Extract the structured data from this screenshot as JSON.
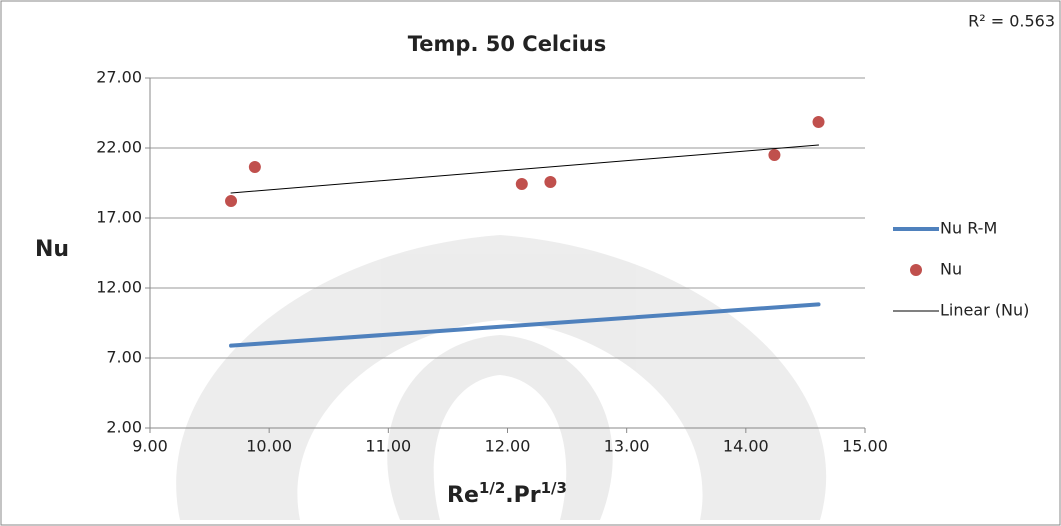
{
  "chart_data": {
    "type": "scatter",
    "title": "Temp. 50 Celcius",
    "annotation": "R² = 0.563",
    "ylabel": "Nu",
    "xlabel": [
      "Re",
      "1/2",
      ".Pr",
      "1/3"
    ],
    "xlim": [
      9,
      15
    ],
    "xticks": [
      {
        "value": 9,
        "label": "9.00"
      },
      {
        "value": 10,
        "label": "10.00"
      },
      {
        "value": 11,
        "label": "11.00"
      },
      {
        "value": 12,
        "label": "12.00"
      },
      {
        "value": 13,
        "label": "13.00"
      },
      {
        "value": 14,
        "label": "14.00"
      },
      {
        "value": 15,
        "label": "15.00"
      }
    ],
    "ylim": [
      2,
      27
    ],
    "yticks": [
      {
        "value": 2,
        "label": "2.00"
      },
      {
        "value": 7,
        "label": "7.00"
      },
      {
        "value": 12,
        "label": "12.00"
      },
      {
        "value": 17,
        "label": "17.00"
      },
      {
        "value": 22,
        "label": "22.00"
      },
      {
        "value": 27,
        "label": "27.00"
      }
    ],
    "grid": true,
    "legend": "right",
    "series": [
      {
        "name": "Nu R-M",
        "type": "line",
        "color": "#4f81bd",
        "x": [
          9.68,
          9.88,
          12.12,
          12.36,
          14.24,
          14.61
        ],
        "values": [
          7.88,
          8.0,
          9.34,
          9.48,
          10.61,
          10.83
        ]
      },
      {
        "name": "Nu",
        "type": "scatter",
        "color": "#c0504d",
        "x": [
          9.68,
          9.88,
          12.12,
          12.36,
          14.24,
          14.61
        ],
        "values": [
          18.21,
          20.64,
          19.43,
          19.57,
          21.5,
          23.86
        ]
      },
      {
        "name": "Linear (Nu)",
        "type": "line",
        "color": "#000000",
        "x": [
          9.68,
          14.61
        ],
        "values": [
          18.79,
          22.21
        ]
      }
    ]
  }
}
